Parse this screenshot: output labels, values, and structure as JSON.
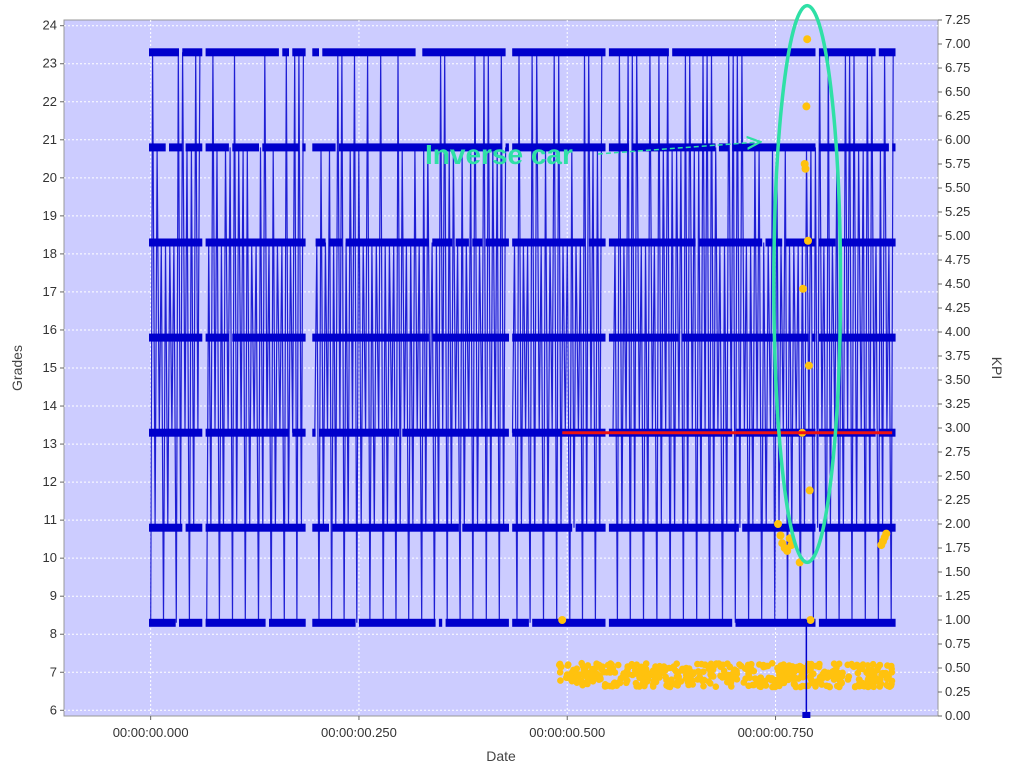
{
  "chart_data": {
    "type": "line",
    "xlabel": "Date",
    "ylabel": "Grades",
    "y2label": "KPI",
    "xlim": [
      -0.104,
      0.945
    ],
    "ylim": [
      5.85,
      24.15
    ],
    "y2lim": [
      0,
      7.25
    ],
    "x_ticks": [
      {
        "value": 0.0,
        "label": "00:00:00.000"
      },
      {
        "value": 0.25,
        "label": "00:00:00.250"
      },
      {
        "value": 0.5,
        "label": "00:00:00.500"
      },
      {
        "value": 0.75,
        "label": "00:00:00.750"
      }
    ],
    "y_ticks": [
      6,
      7,
      8,
      9,
      10,
      11,
      12,
      13,
      14,
      15,
      16,
      17,
      18,
      19,
      20,
      21,
      22,
      23,
      24
    ],
    "y2_ticks": [
      "0.00",
      "0.25",
      "0.50",
      "0.75",
      "1.00",
      "1.25",
      "1.50",
      "1.75",
      "2.00",
      "2.25",
      "2.50",
      "2.75",
      "3.00",
      "3.25",
      "3.50",
      "3.75",
      "4.00",
      "4.25",
      "4.50",
      "4.75",
      "5.00",
      "5.25",
      "5.50",
      "5.75",
      "6.00",
      "6.25",
      "6.50",
      "6.75",
      "7.00",
      "7.25"
    ],
    "grid": true,
    "colors": {
      "background": "#ccccff",
      "grades_series": "#0000cc",
      "kpi_points": "#ffc20e",
      "threshold_line": "#ee1111",
      "annotation": "#2fe0a6"
    },
    "series": [
      {
        "axis": "left",
        "style": "line+square",
        "lanes": [
          8.3,
          10.8,
          13.3,
          15.8,
          18.3,
          20.8,
          23.3
        ],
        "x_range": [
          0.0,
          0.89
        ],
        "note": "dense oscillating signal cycling between the lane values"
      },
      {
        "axis": "right",
        "style": "scatter",
        "cluster": {
          "x_range": [
            0.49,
            0.89
          ],
          "y_range": [
            0.3,
            0.55
          ]
        },
        "points": [
          {
            "x": 0.494,
            "y": 1.0
          },
          {
            "x": 0.753,
            "y": 2.0
          },
          {
            "x": 0.756,
            "y": 1.88
          },
          {
            "x": 0.758,
            "y": 1.8
          },
          {
            "x": 0.761,
            "y": 1.75
          },
          {
            "x": 0.764,
            "y": 1.72
          },
          {
            "x": 0.767,
            "y": 1.85
          },
          {
            "x": 0.769,
            "y": 1.78
          },
          {
            "x": 0.779,
            "y": 1.6
          },
          {
            "x": 0.782,
            "y": 2.95
          },
          {
            "x": 0.783,
            "y": 4.45
          },
          {
            "x": 0.785,
            "y": 5.75
          },
          {
            "x": 0.786,
            "y": 5.7
          },
          {
            "x": 0.787,
            "y": 6.35
          },
          {
            "x": 0.788,
            "y": 7.05
          },
          {
            "x": 0.789,
            "y": 4.95
          },
          {
            "x": 0.79,
            "y": 3.65
          },
          {
            "x": 0.791,
            "y": 2.35
          },
          {
            "x": 0.792,
            "y": 1.0
          },
          {
            "x": 0.877,
            "y": 1.78
          },
          {
            "x": 0.879,
            "y": 1.82
          },
          {
            "x": 0.881,
            "y": 1.86
          },
          {
            "x": 0.883,
            "y": 1.9
          }
        ]
      }
    ],
    "threshold_line": {
      "axis": "right",
      "y": 2.95,
      "x_range": [
        0.494,
        0.89
      ]
    },
    "marker_line": {
      "x": 0.787,
      "y2_range": [
        0.0,
        1.0
      ]
    },
    "annotation": {
      "text": "Inverse car",
      "arrow_to": {
        "x": 0.73,
        "y": 6.0
      },
      "ellipse": {
        "cx": 0.788,
        "cy_kpi": 4.5,
        "rx": 0.04,
        "ry_kpi": 2.9
      }
    }
  }
}
